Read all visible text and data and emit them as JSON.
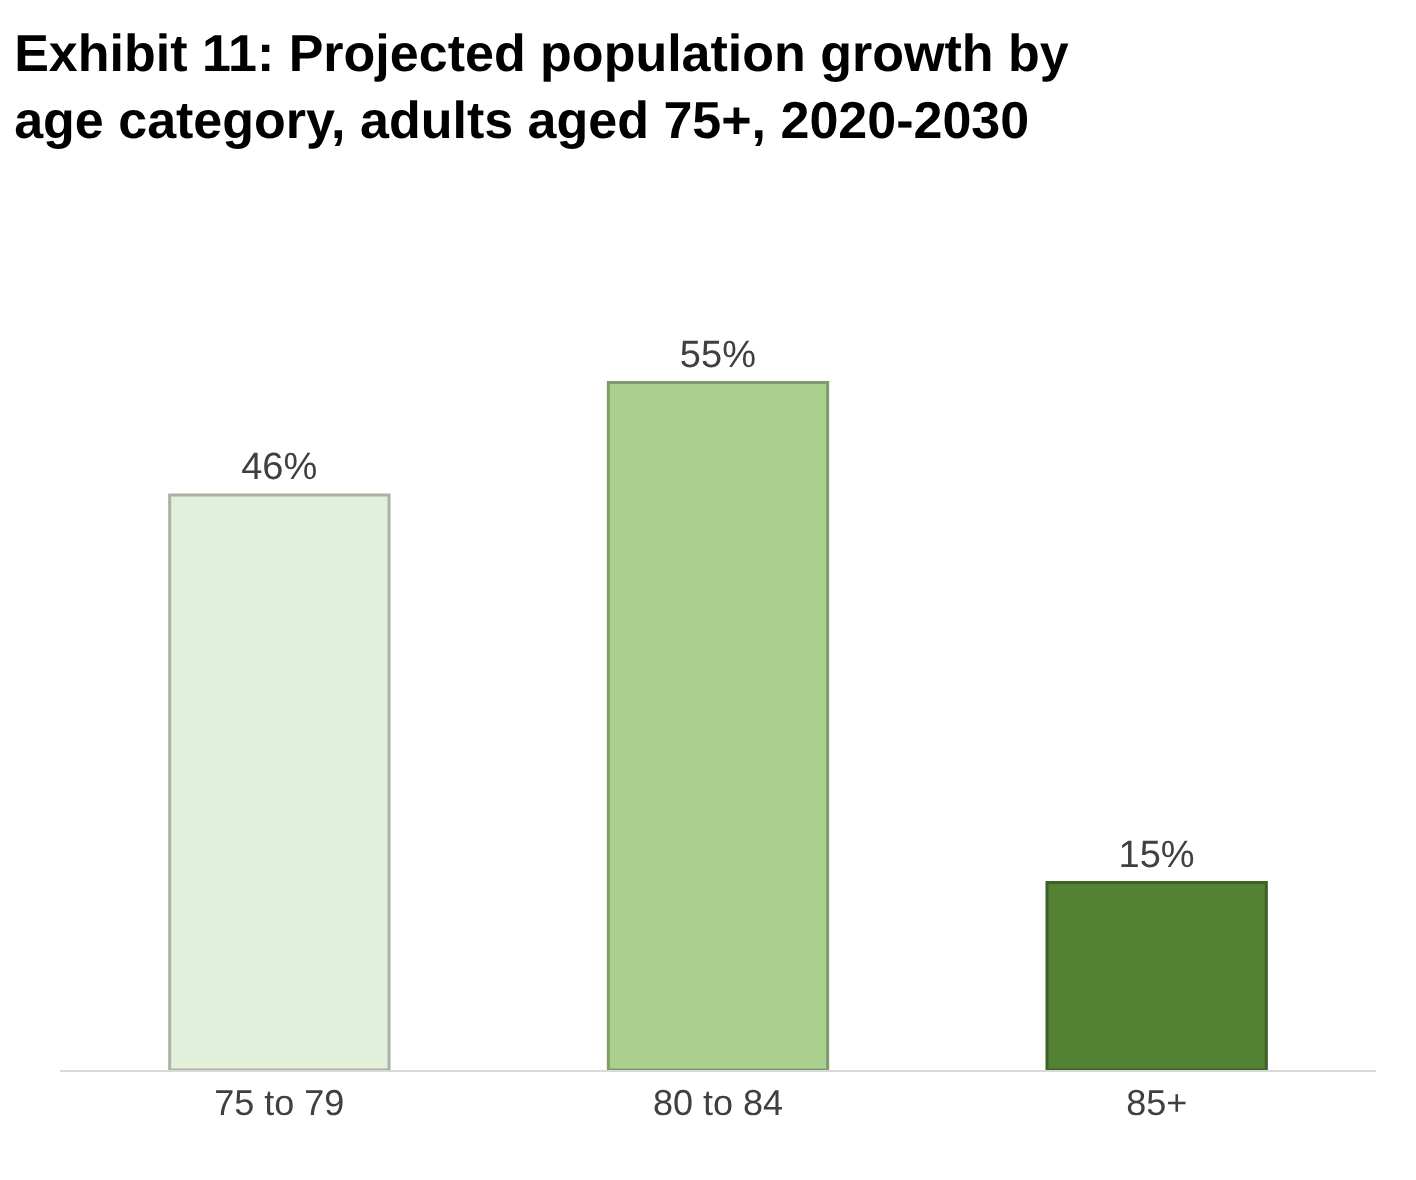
{
  "chart_data": {
    "type": "bar",
    "title": "Exhibit 11: Projected population growth by\nage category, adults aged 75+, 2020-2030",
    "categories": [
      "75 to 79",
      "80 to 84",
      "85+"
    ],
    "values": [
      46,
      55,
      15
    ],
    "colors": [
      "#e2efda",
      "#a9d08e",
      "#548235"
    ],
    "value_labels": [
      "46%",
      "55%",
      "15%"
    ],
    "legend": false,
    "tick_labels": "x"
  }
}
